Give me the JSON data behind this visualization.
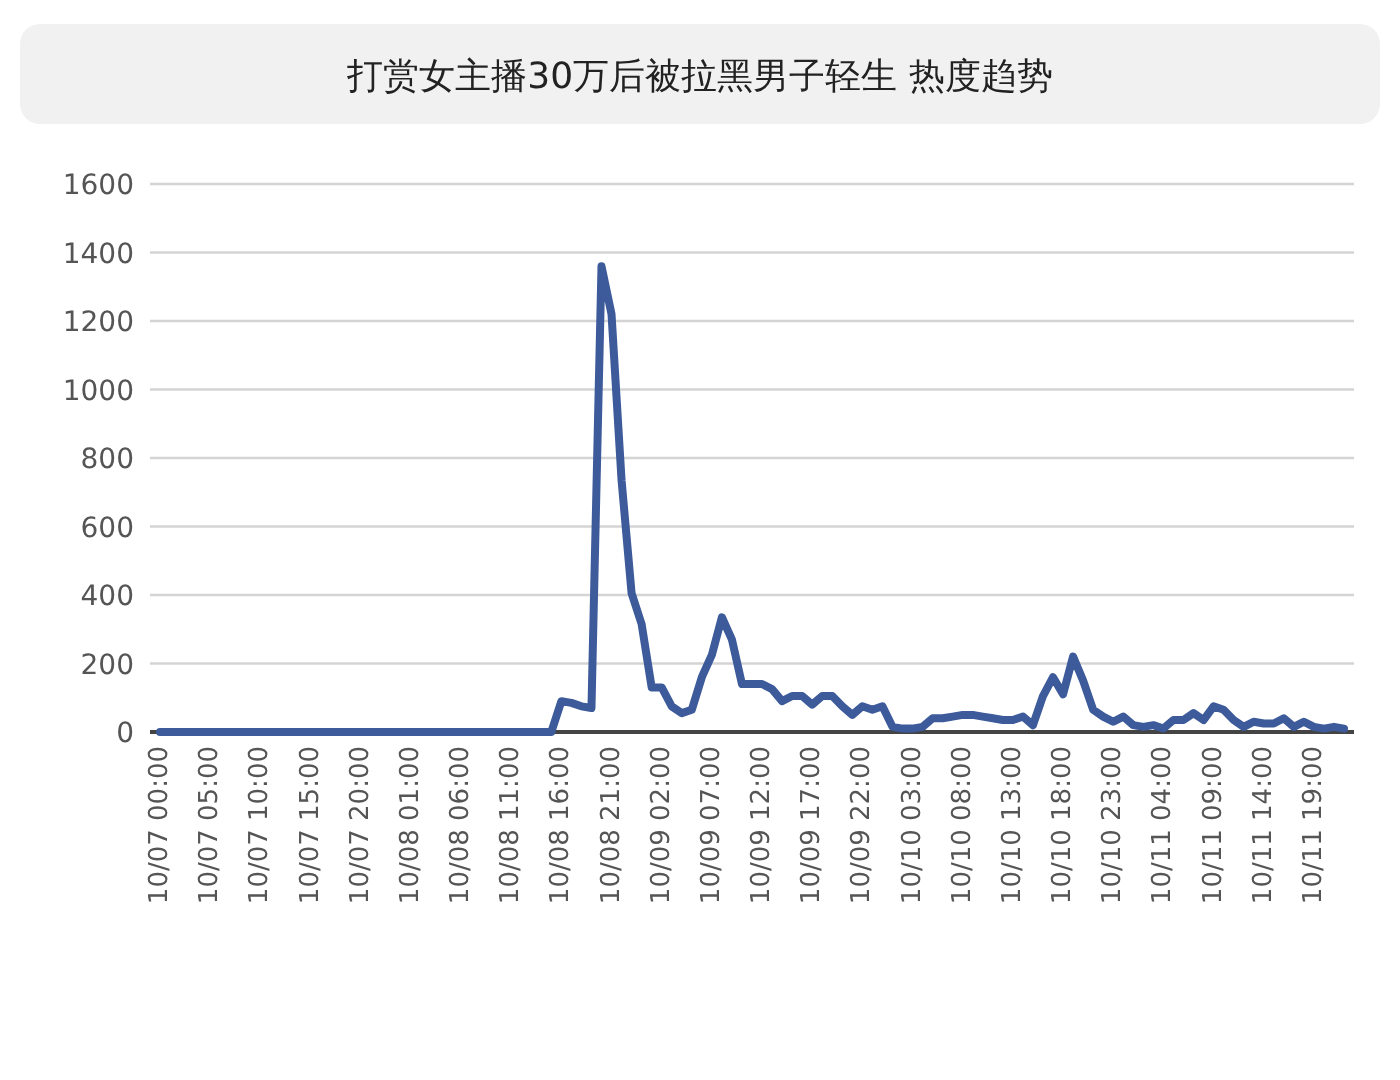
{
  "chart_data": {
    "type": "line",
    "title": "打赏女主播30万后被拉黑男子轻生 热度趋势",
    "categories": [
      "10/07 00:00",
      null,
      null,
      null,
      null,
      "10/07 05:00",
      null,
      null,
      null,
      null,
      "10/07 10:00",
      null,
      null,
      null,
      null,
      "10/07 15:00",
      null,
      null,
      null,
      null,
      "10/07 20:00",
      null,
      null,
      null,
      null,
      "10/08 01:00",
      null,
      null,
      null,
      null,
      "10/08 06:00",
      null,
      null,
      null,
      null,
      "10/08 11:00",
      null,
      null,
      null,
      null,
      "10/08 16:00",
      null,
      null,
      null,
      null,
      "10/08 21:00",
      null,
      null,
      null,
      null,
      "10/09 02:00",
      null,
      null,
      null,
      null,
      "10/09 07:00",
      null,
      null,
      null,
      null,
      "10/09 12:00",
      null,
      null,
      null,
      null,
      "10/09 17:00",
      null,
      null,
      null,
      null,
      "10/09 22:00",
      null,
      null,
      null,
      null,
      "10/10 03:00",
      null,
      null,
      null,
      null,
      "10/10 08:00",
      null,
      null,
      null,
      null,
      "10/10 13:00",
      null,
      null,
      null,
      null,
      "10/10 18:00",
      null,
      null,
      null,
      null,
      "10/10 23:00",
      null,
      null,
      null,
      null,
      "10/11 04:00",
      null,
      null,
      null,
      null,
      "10/11 09:00",
      null,
      null,
      null,
      null,
      "10/11 14:00",
      null,
      null,
      null,
      null,
      "10/11 19:00",
      null,
      null,
      null
    ],
    "series": [
      {
        "color": "#3d5b9a",
        "values": [
          0,
          0,
          0,
          0,
          0,
          0,
          0,
          0,
          0,
          0,
          0,
          0,
          0,
          0,
          0,
          0,
          0,
          0,
          0,
          0,
          0,
          0,
          0,
          0,
          0,
          0,
          0,
          0,
          0,
          0,
          0,
          0,
          0,
          0,
          0,
          0,
          0,
          0,
          0,
          0,
          90,
          85,
          75,
          70,
          1360,
          1220,
          735,
          405,
          315,
          130,
          130,
          75,
          55,
          65,
          160,
          225,
          335,
          270,
          140,
          140,
          140,
          125,
          90,
          105,
          105,
          80,
          105,
          105,
          75,
          50,
          75,
          65,
          75,
          15,
          10,
          10,
          15,
          40,
          40,
          45,
          50,
          50,
          45,
          40,
          35,
          35,
          45,
          20,
          105,
          160,
          110,
          220,
          150,
          65,
          45,
          30,
          45,
          20,
          15,
          20,
          10,
          35,
          35,
          55,
          35,
          75,
          65,
          35,
          15,
          30,
          25,
          25,
          40,
          15,
          30,
          15,
          10,
          15,
          10
        ]
      }
    ],
    "ylim": [
      0,
      1600
    ],
    "yticks": [
      0,
      200,
      400,
      600,
      800,
      1000,
      1200,
      1400,
      1600
    ],
    "grid": "y",
    "marker": "none",
    "line_style": "solid"
  }
}
